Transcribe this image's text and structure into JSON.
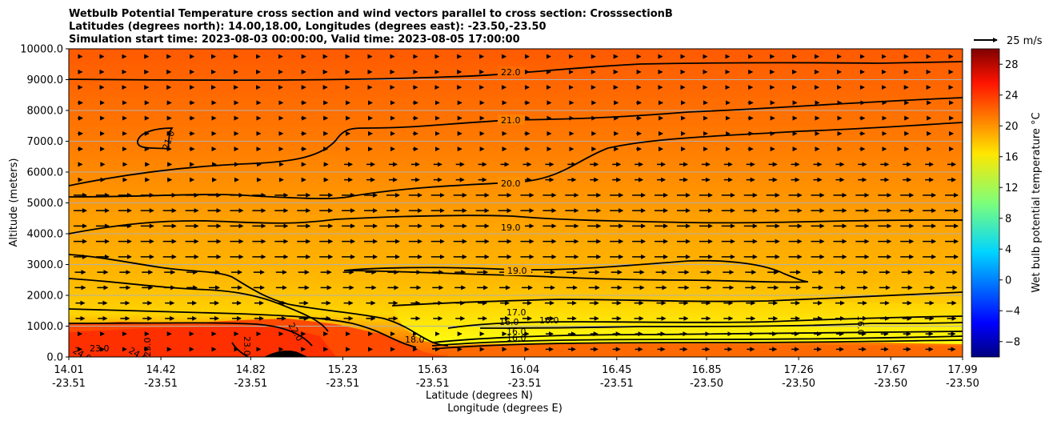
{
  "chart_data": {
    "type": "contour",
    "title_lines": [
      "Wetbulb Potential Temperature cross section and wind vectors parallel to cross section: CrosssectionB",
      "Latitudes (degrees north): 14.00,18.00, Longitudes (degrees east): -23.50,-23.50",
      "Simulation start time: 2023-08-03 00:00:00, Valid time: 2023-08-05 17:00:00"
    ],
    "ylabel": "Altitude (meters)",
    "xlabel_lat": "Latitude (degrees N)",
    "xlabel_lon": "Longitude (degrees E)",
    "ylim": [
      0,
      10000
    ],
    "yticks": [
      "0.0",
      "1000.0",
      "2000.0",
      "3000.0",
      "4000.0",
      "5000.0",
      "6000.0",
      "7000.0",
      "8000.0",
      "9000.0",
      "10000.0"
    ],
    "xticks": [
      {
        "lat": "14.01",
        "lon": "-23.51"
      },
      {
        "lat": "14.42",
        "lon": "-23.51"
      },
      {
        "lat": "14.82",
        "lon": "-23.51"
      },
      {
        "lat": "15.23",
        "lon": "-23.51"
      },
      {
        "lat": "15.63",
        "lon": "-23.51"
      },
      {
        "lat": "16.04",
        "lon": "-23.51"
      },
      {
        "lat": "16.45",
        "lon": "-23.51"
      },
      {
        "lat": "16.85",
        "lon": "-23.50"
      },
      {
        "lat": "17.26",
        "lon": "-23.50"
      },
      {
        "lat": "17.67",
        "lon": "-23.50"
      },
      {
        "lat": "17.99",
        "lon": "-23.50"
      }
    ],
    "colorbar_label": "Wet bulb potential temperature $^\\circ$C",
    "colorbar_label_text": "Wet bulb potential temperature °C",
    "colorbar_ticks": [
      "−8",
      "−4",
      "0",
      "4",
      "8",
      "12",
      "16",
      "20",
      "24",
      "28"
    ],
    "colorbar_range": [
      -10,
      30
    ],
    "quiver_key": "25 m/s",
    "contour_labels": [
      "22.0",
      "21.0",
      "21.0",
      "20.0",
      "19.0",
      "19.0",
      "17.0",
      "16.0",
      "16.0",
      "16.0",
      "16.0",
      "18.0",
      "23.0",
      "24.0",
      "24.0",
      "23.0",
      "23.0",
      "22.0",
      "16.0"
    ],
    "contour_levels": [
      16,
      17,
      18,
      19,
      20,
      21,
      22,
      23,
      24
    ]
  }
}
